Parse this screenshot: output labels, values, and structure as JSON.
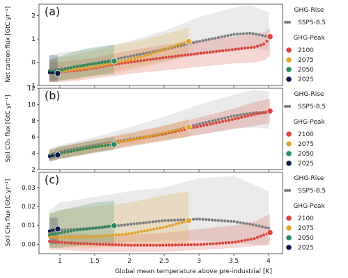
{
  "x_axis": {
    "label": "Global mean temperature above pre-industrial [K]",
    "ticks": [
      1,
      1.5,
      2,
      2.5,
      3,
      3.5,
      4
    ],
    "tick_labels": [
      "1",
      "1.5",
      "2",
      "2.5",
      "3",
      "3.5",
      "4"
    ],
    "range": [
      0.7,
      4.2
    ]
  },
  "legend": {
    "rise_title": "GHG-Rise",
    "rise_entry": "SSP5-8.5",
    "peak_title": "GHG-Peak",
    "peak_entries": [
      "2100",
      "2075",
      "2050",
      "2025"
    ]
  },
  "colors": {
    "ssp585": "#7f7f7f",
    "y2100": "#d9473c",
    "y2075": "#e0a22e",
    "y2050": "#2e8a5c",
    "y2025": "#0e1a4a"
  },
  "panels": [
    {
      "label": "(a)",
      "ylabel": "Net carbon flux [GtC yr⁻¹]",
      "ylim": [
        -1.0,
        2.5
      ],
      "yticks": [
        -1,
        0,
        1,
        2
      ],
      "ytick_labels": [
        "−1",
        "0",
        "1",
        "2"
      ]
    },
    {
      "label": "(b)",
      "ylabel": "Soil CO₂ flux [GtC yr⁻¹]",
      "ylim": [
        2,
        12
      ],
      "yticks": [
        2,
        4,
        6,
        8,
        10,
        12
      ],
      "ytick_labels": [
        "2",
        "4",
        "6",
        "8",
        "10",
        "12"
      ]
    },
    {
      "label": "(c)",
      "ylabel": "Soil CH₄ flux [GtC yr⁻¹]",
      "ylim": [
        -0.005,
        0.038
      ],
      "yticks": [
        0.0,
        0.01,
        0.02,
        0.03
      ],
      "ytick_labels": [
        "0.00",
        "0.01",
        "0.02",
        "0.03"
      ]
    }
  ],
  "chart_data": [
    {
      "type": "scatter",
      "panel": "(a)",
      "ylabel": "Net carbon flux [GtC yr⁻¹]",
      "series": [
        {
          "name": "SSP5-8.5",
          "x": [
            0.85,
            1.0,
            1.25,
            1.5,
            1.75,
            2.0,
            2.5,
            3.0,
            3.5,
            3.75,
            4.0
          ],
          "y": [
            -0.35,
            -0.3,
            -0.2,
            -0.05,
            0.1,
            0.25,
            0.55,
            0.9,
            1.2,
            1.25,
            1.1
          ],
          "band_lower": [
            -0.8,
            -0.75,
            -0.7,
            -0.55,
            -0.4,
            -0.25,
            0.05,
            0.3,
            0.55,
            0.6,
            0.5
          ],
          "band_upper": [
            0.3,
            0.4,
            0.5,
            0.6,
            0.75,
            0.9,
            1.35,
            1.95,
            2.35,
            2.45,
            2.15
          ]
        },
        {
          "name": "2100",
          "x": [
            0.85,
            1.0,
            1.25,
            1.5,
            1.75,
            2.0,
            2.5,
            3.0,
            3.5,
            3.8,
            3.95,
            4.02
          ],
          "y": [
            -0.45,
            -0.42,
            -0.35,
            -0.25,
            -0.1,
            0.0,
            0.2,
            0.38,
            0.55,
            0.65,
            0.8,
            1.1
          ],
          "band_lower": [
            -0.85,
            -0.85,
            -0.8,
            -0.7,
            -0.6,
            -0.5,
            -0.35,
            -0.2,
            -0.05,
            0.0,
            0.1,
            0.3
          ],
          "band_upper": [
            0.0,
            0.0,
            0.1,
            0.2,
            0.35,
            0.5,
            0.75,
            0.95,
            1.1,
            1.2,
            1.3,
            1.5
          ]
        },
        {
          "name": "2075",
          "x": [
            0.85,
            1.0,
            1.25,
            1.5,
            1.75,
            2.0,
            2.25,
            2.5,
            2.75,
            2.85
          ],
          "y": [
            -0.42,
            -0.4,
            -0.3,
            -0.2,
            -0.05,
            0.1,
            0.3,
            0.55,
            0.8,
            0.9
          ],
          "band_lower": [
            -0.8,
            -0.8,
            -0.75,
            -0.6,
            -0.5,
            -0.35,
            -0.2,
            0.0,
            0.2,
            0.3
          ],
          "band_upper": [
            0.1,
            0.2,
            0.35,
            0.5,
            0.7,
            0.85,
            1.0,
            1.2,
            1.4,
            1.5
          ]
        },
        {
          "name": "2050",
          "x": [
            0.85,
            1.0,
            1.2,
            1.4,
            1.6,
            1.78
          ],
          "y": [
            -0.4,
            -0.35,
            -0.2,
            -0.1,
            -0.02,
            0.05
          ],
          "band_lower": [
            -0.8,
            -0.8,
            -0.7,
            -0.6,
            -0.55,
            -0.5
          ],
          "band_upper": [
            0.1,
            0.25,
            0.45,
            0.6,
            0.7,
            0.75
          ]
        },
        {
          "name": "2025",
          "x": [
            0.85,
            0.9,
            0.95,
            0.97
          ],
          "y": [
            -0.45,
            -0.45,
            -0.47,
            -0.48
          ],
          "band_lower": [
            -0.85,
            -0.85,
            -0.85,
            -0.85
          ],
          "band_upper": [
            0.3,
            0.3,
            0.3,
            0.3
          ]
        }
      ]
    },
    {
      "type": "scatter",
      "panel": "(b)",
      "ylabel": "Soil CO₂ flux [GtC yr⁻¹]",
      "series": [
        {
          "name": "SSP5-8.5",
          "x": [
            0.85,
            1.0,
            1.5,
            2.0,
            2.5,
            3.0,
            3.5,
            3.8,
            4.0
          ],
          "y": [
            3.8,
            4.2,
            5.0,
            5.7,
            6.4,
            7.6,
            8.6,
            9.0,
            9.0
          ],
          "band_lower": [
            3.0,
            3.3,
            4.0,
            4.8,
            5.5,
            6.3,
            7.0,
            7.2,
            7.0
          ],
          "band_upper": [
            4.6,
            5.0,
            6.0,
            7.2,
            8.5,
            10.0,
            11.2,
            11.8,
            11.6
          ]
        },
        {
          "name": "2100",
          "x": [
            0.85,
            1.0,
            1.5,
            2.0,
            2.5,
            3.0,
            3.5,
            3.8,
            4.02
          ],
          "y": [
            3.7,
            4.0,
            4.8,
            5.6,
            6.4,
            7.3,
            8.2,
            8.8,
            9.2
          ],
          "band_lower": [
            3.0,
            3.3,
            4.1,
            4.9,
            5.6,
            6.3,
            7.0,
            7.4,
            7.7
          ],
          "band_upper": [
            4.4,
            4.8,
            5.7,
            6.5,
            7.4,
            8.4,
            9.5,
            10.3,
            10.7
          ]
        },
        {
          "name": "2075",
          "x": [
            0.85,
            1.0,
            1.5,
            2.0,
            2.5,
            2.85
          ],
          "y": [
            3.7,
            4.0,
            4.8,
            5.6,
            6.5,
            7.2
          ],
          "band_lower": [
            3.0,
            3.3,
            4.1,
            4.9,
            5.6,
            6.0
          ],
          "band_upper": [
            4.4,
            4.8,
            5.6,
            6.4,
            7.4,
            8.2
          ]
        },
        {
          "name": "2050",
          "x": [
            0.85,
            1.0,
            1.25,
            1.5,
            1.78
          ],
          "y": [
            3.7,
            4.0,
            4.4,
            4.8,
            5.1
          ],
          "band_lower": [
            3.0,
            3.3,
            3.7,
            4.1,
            4.4
          ],
          "band_upper": [
            4.4,
            4.8,
            5.2,
            5.6,
            6.0
          ]
        },
        {
          "name": "2025",
          "x": [
            0.85,
            0.9,
            0.97
          ],
          "y": [
            3.6,
            3.7,
            3.8
          ],
          "band_lower": [
            3.2,
            3.3,
            3.4
          ],
          "band_upper": [
            4.0,
            4.1,
            4.2
          ]
        }
      ]
    },
    {
      "type": "scatter",
      "panel": "(c)",
      "ylabel": "Soil CH₄ flux [GtC yr⁻¹]",
      "series": [
        {
          "name": "SSP5-8.5",
          "x": [
            0.85,
            1.0,
            1.5,
            2.0,
            2.5,
            3.0,
            3.5,
            3.75,
            4.0
          ],
          "y": [
            0.0065,
            0.0075,
            0.0085,
            0.0105,
            0.0125,
            0.0133,
            0.012,
            0.0105,
            0.0085
          ],
          "band_lower": [
            -0.002,
            -0.001,
            0.0,
            0.001,
            0.002,
            0.002,
            0.001,
            0.0,
            -0.001
          ],
          "band_upper": [
            0.018,
            0.022,
            0.025,
            0.028,
            0.03,
            0.035,
            0.036,
            0.032,
            0.028
          ]
        },
        {
          "name": "2100",
          "x": [
            0.85,
            1.0,
            1.5,
            2.0,
            2.5,
            3.0,
            3.5,
            3.8,
            4.02
          ],
          "y": [
            0.0015,
            0.001,
            0.0,
            -0.0005,
            -0.0005,
            -0.0002,
            0.001,
            0.003,
            0.0062
          ],
          "band_lower": [
            -0.003,
            -0.003,
            -0.004,
            -0.004,
            -0.004,
            -0.003,
            -0.002,
            -0.001,
            0.0
          ],
          "band_upper": [
            0.006,
            0.006,
            0.005,
            0.005,
            0.006,
            0.008,
            0.01,
            0.012,
            0.016
          ]
        },
        {
          "name": "2075",
          "x": [
            0.85,
            1.0,
            1.5,
            2.0,
            2.5,
            2.85
          ],
          "y": [
            0.004,
            0.0035,
            0.004,
            0.0055,
            0.009,
            0.0125
          ],
          "band_lower": [
            -0.002,
            -0.002,
            -0.002,
            -0.001,
            0.0,
            0.0
          ],
          "band_upper": [
            0.016,
            0.018,
            0.02,
            0.022,
            0.026,
            0.028
          ]
        },
        {
          "name": "2050",
          "x": [
            0.85,
            1.0,
            1.25,
            1.5,
            1.78
          ],
          "y": [
            0.005,
            0.006,
            0.0075,
            0.0085,
            0.0098
          ],
          "band_lower": [
            -0.002,
            -0.002,
            -0.001,
            0.0,
            0.0
          ],
          "band_upper": [
            0.016,
            0.018,
            0.02,
            0.022,
            0.023
          ]
        },
        {
          "name": "2025",
          "x": [
            0.85,
            0.9,
            0.97
          ],
          "y": [
            0.007,
            0.0075,
            0.008
          ],
          "band_lower": [
            0.0,
            0.0,
            0.0
          ],
          "band_upper": [
            0.014,
            0.014,
            0.014
          ]
        }
      ]
    }
  ]
}
